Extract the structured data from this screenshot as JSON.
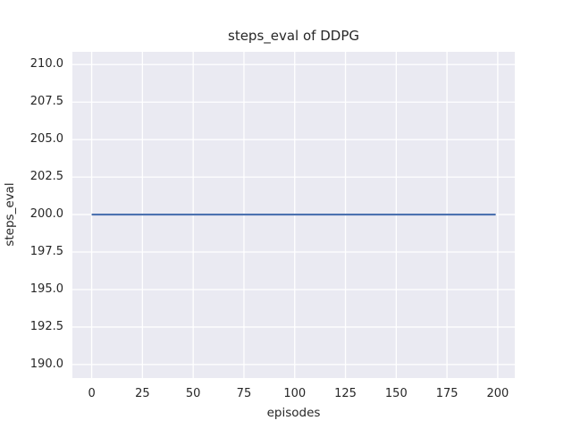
{
  "chart_data": {
    "type": "line",
    "title": "steps_eval of DDPG",
    "xlabel": "episodes",
    "ylabel": "steps_eval",
    "xlim": [
      -9.5,
      208.4
    ],
    "ylim": [
      189.1,
      210.85
    ],
    "x_ticks": [
      0,
      25,
      50,
      75,
      100,
      125,
      150,
      175,
      200
    ],
    "x_tick_labels": [
      "0",
      "25",
      "50",
      "75",
      "100",
      "125",
      "150",
      "175",
      "200"
    ],
    "y_ticks": [
      190.0,
      192.5,
      195.0,
      197.5,
      200.0,
      202.5,
      205.0,
      207.5,
      210.0
    ],
    "y_tick_labels": [
      "190.0",
      "192.5",
      "195.0",
      "197.5",
      "200.0",
      "202.5",
      "205.0",
      "207.5",
      "210.0"
    ],
    "grid": true,
    "legend": false,
    "series": [
      {
        "name": "DDPG",
        "color": "#4c72b0",
        "x": [
          0,
          199
        ],
        "y": [
          200,
          200
        ]
      }
    ],
    "colors": {
      "figure_background": "#ffffff",
      "plot_background": "#eaeaf2",
      "gridline": "#ffffff",
      "text": "#262626"
    }
  }
}
